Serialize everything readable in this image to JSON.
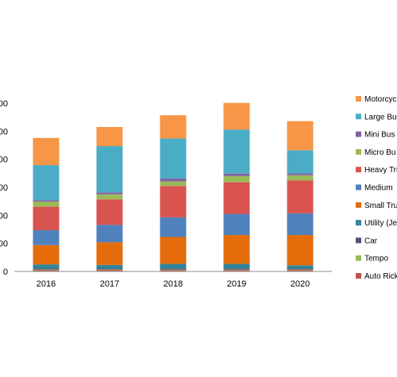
{
  "chart_data": {
    "type": "bar",
    "stacked": true,
    "categories": [
      "2016",
      "2017",
      "2018",
      "2019",
      "2020"
    ],
    "y_tick_labels": [
      "00",
      "00",
      "00",
      "00",
      "00",
      "00",
      "0"
    ],
    "ylim": [
      0,
      6
    ],
    "grid": false,
    "legend_position": "right",
    "series": [
      {
        "name": "Auto Rick",
        "color": "#C0504D",
        "values": [
          0.05,
          0.05,
          0.05,
          0.05,
          0.05
        ]
      },
      {
        "name": "Tempo",
        "color": "#9BBB59",
        "values": [
          0.02,
          0.02,
          0.02,
          0.02,
          0.02
        ]
      },
      {
        "name": "Car",
        "color": "#604A7B",
        "values": [
          0.03,
          0.03,
          0.03,
          0.03,
          0.03
        ]
      },
      {
        "name": "Utility (Je",
        "color": "#31859C",
        "values": [
          0.15,
          0.13,
          0.17,
          0.17,
          0.12
        ]
      },
      {
        "name": "Small Tru",
        "color": "#E46C0A",
        "values": [
          0.69,
          0.81,
          0.96,
          1.03,
          1.08
        ]
      },
      {
        "name": "Medium",
        "color": "#4F81BD",
        "values": [
          0.53,
          0.62,
          0.7,
          0.75,
          0.77
        ]
      },
      {
        "name": "Heavy Tru",
        "color": "#D9534F",
        "values": [
          0.84,
          0.91,
          1.12,
          1.13,
          1.18
        ]
      },
      {
        "name": "Micro Bu",
        "color": "#9BBB59",
        "values": [
          0.18,
          0.18,
          0.16,
          0.22,
          0.18
        ]
      },
      {
        "name": "Mini Bus",
        "color": "#8064A2",
        "values": [
          0.05,
          0.07,
          0.1,
          0.09,
          0.07
        ]
      },
      {
        "name": "Large Bus",
        "color": "#4BACC6",
        "values": [
          1.25,
          1.65,
          1.43,
          1.57,
          0.82
        ]
      },
      {
        "name": "Motorcyc",
        "color": "#F79646",
        "values": [
          0.97,
          0.68,
          0.83,
          0.95,
          1.04
        ]
      }
    ]
  }
}
